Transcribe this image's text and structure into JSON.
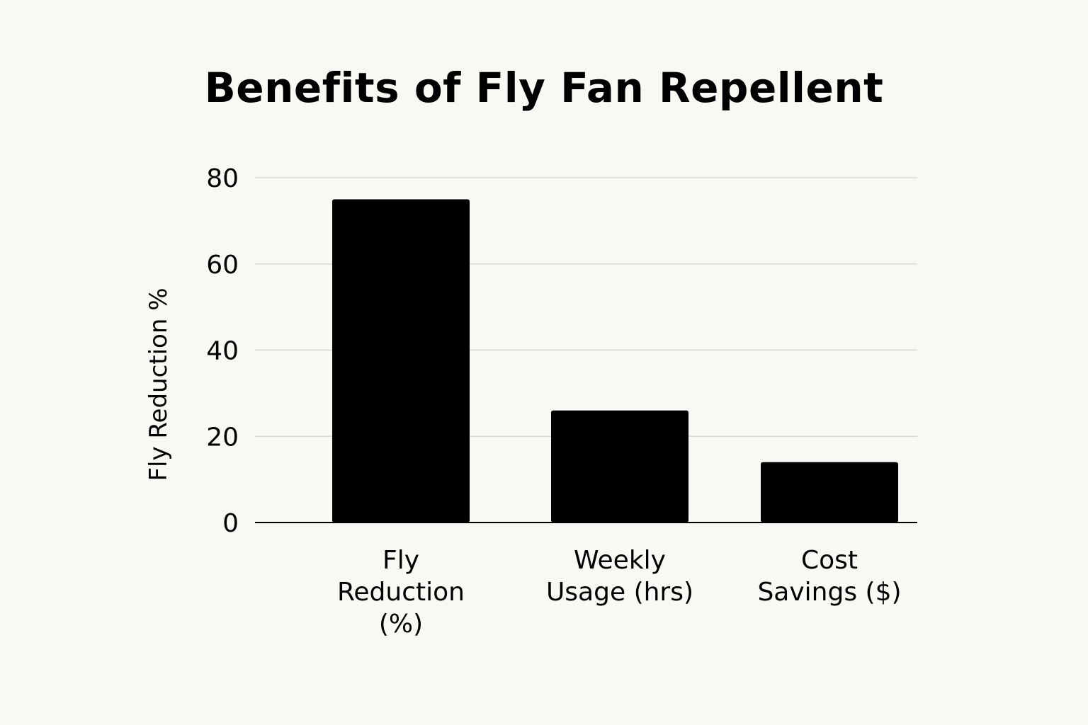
{
  "chart_data": {
    "type": "bar",
    "title": "Benefits of Fly Fan Repellent",
    "xlabel": "",
    "ylabel": "Fly Reduction %",
    "categories": [
      [
        "Fly",
        "Reduction",
        "(%)"
      ],
      [
        "Weekly",
        "Usage (hrs)"
      ],
      [
        "Cost",
        "Savings ($)"
      ]
    ],
    "values": [
      75,
      26,
      14
    ],
    "ylim": [
      0,
      80
    ],
    "yticks": [
      0,
      20,
      40,
      60,
      80
    ],
    "grid": true,
    "legend": "none",
    "colors": {
      "bar": "#000000",
      "grid": "#d9d9d6",
      "axis": "#000000",
      "background": "#f9f8f4"
    }
  }
}
